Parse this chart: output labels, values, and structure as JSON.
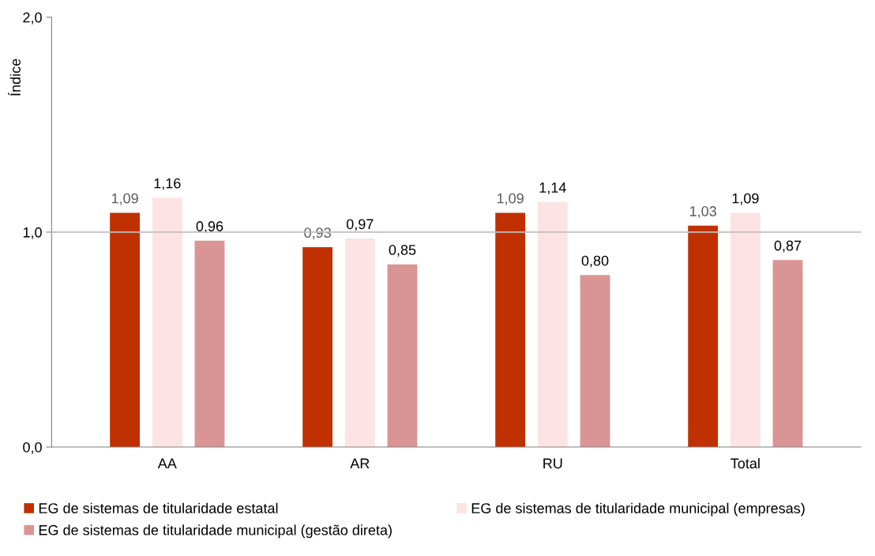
{
  "chart_data": {
    "type": "bar",
    "ylabel": "Índice",
    "categories": [
      "AA",
      "AR",
      "RU",
      "Total"
    ],
    "series": [
      {
        "name": "EG de sistemas de titularidade estatal",
        "color": "#c03000",
        "values": [
          1.09,
          0.93,
          1.09,
          1.03
        ],
        "value_labels": [
          "1,09",
          "0,93",
          "1,09",
          "1,03"
        ]
      },
      {
        "name": "EG de sistemas de titularidade municipal (empresas)",
        "color": "#fde3e4",
        "values": [
          1.16,
          0.97,
          1.14,
          1.09
        ],
        "value_labels": [
          "1,16",
          "0,97",
          "1,14",
          "1,09"
        ]
      },
      {
        "name": "EG de sistemas de titularidade municipal (gestão direta)",
        "color": "#d99594",
        "values": [
          0.96,
          0.85,
          0.8,
          0.87
        ],
        "value_labels": [
          "0,96",
          "0,85",
          "0,80",
          "0,87"
        ]
      }
    ],
    "ylim": [
      0,
      2
    ],
    "yticks": [
      {
        "value": 0,
        "label": "0,0"
      },
      {
        "value": 1,
        "label": "1,0"
      },
      {
        "value": 2,
        "label": "2,0"
      }
    ],
    "grid": false,
    "legend": "bottom",
    "ref_lines": [
      {
        "axis": "y",
        "value": 1,
        "color": "#c0c0c0"
      }
    ]
  }
}
